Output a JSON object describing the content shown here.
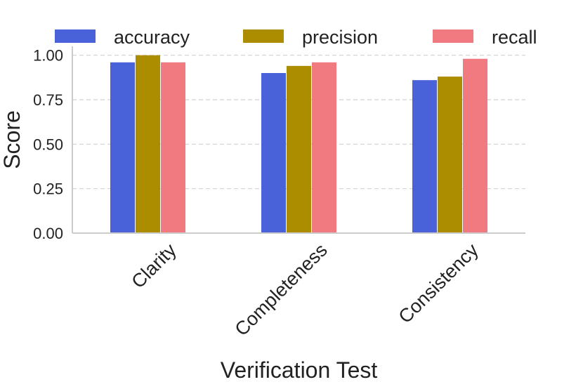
{
  "chart_data": {
    "type": "bar",
    "title": "",
    "xlabel": "Verification Test",
    "ylabel": "Score",
    "categories": [
      "Clarity",
      "Completeness",
      "Consistency"
    ],
    "series": [
      {
        "name": "accuracy",
        "color": "#4a62d9",
        "values": [
          0.96,
          0.9,
          0.86
        ]
      },
      {
        "name": "precision",
        "color": "#ad8d00",
        "values": [
          1.0,
          0.94,
          0.88
        ]
      },
      {
        "name": "recall",
        "color": "#f07a80",
        "values": [
          0.96,
          0.96,
          0.98
        ]
      }
    ],
    "ylim": [
      0,
      1.05
    ],
    "yticks": [
      0.0,
      0.25,
      0.5,
      0.75,
      1.0
    ],
    "ytick_labels": [
      "0.00",
      "0.25",
      "0.50",
      "0.75",
      "1.00"
    ],
    "grid": "y-dashed",
    "legend": "top"
  }
}
